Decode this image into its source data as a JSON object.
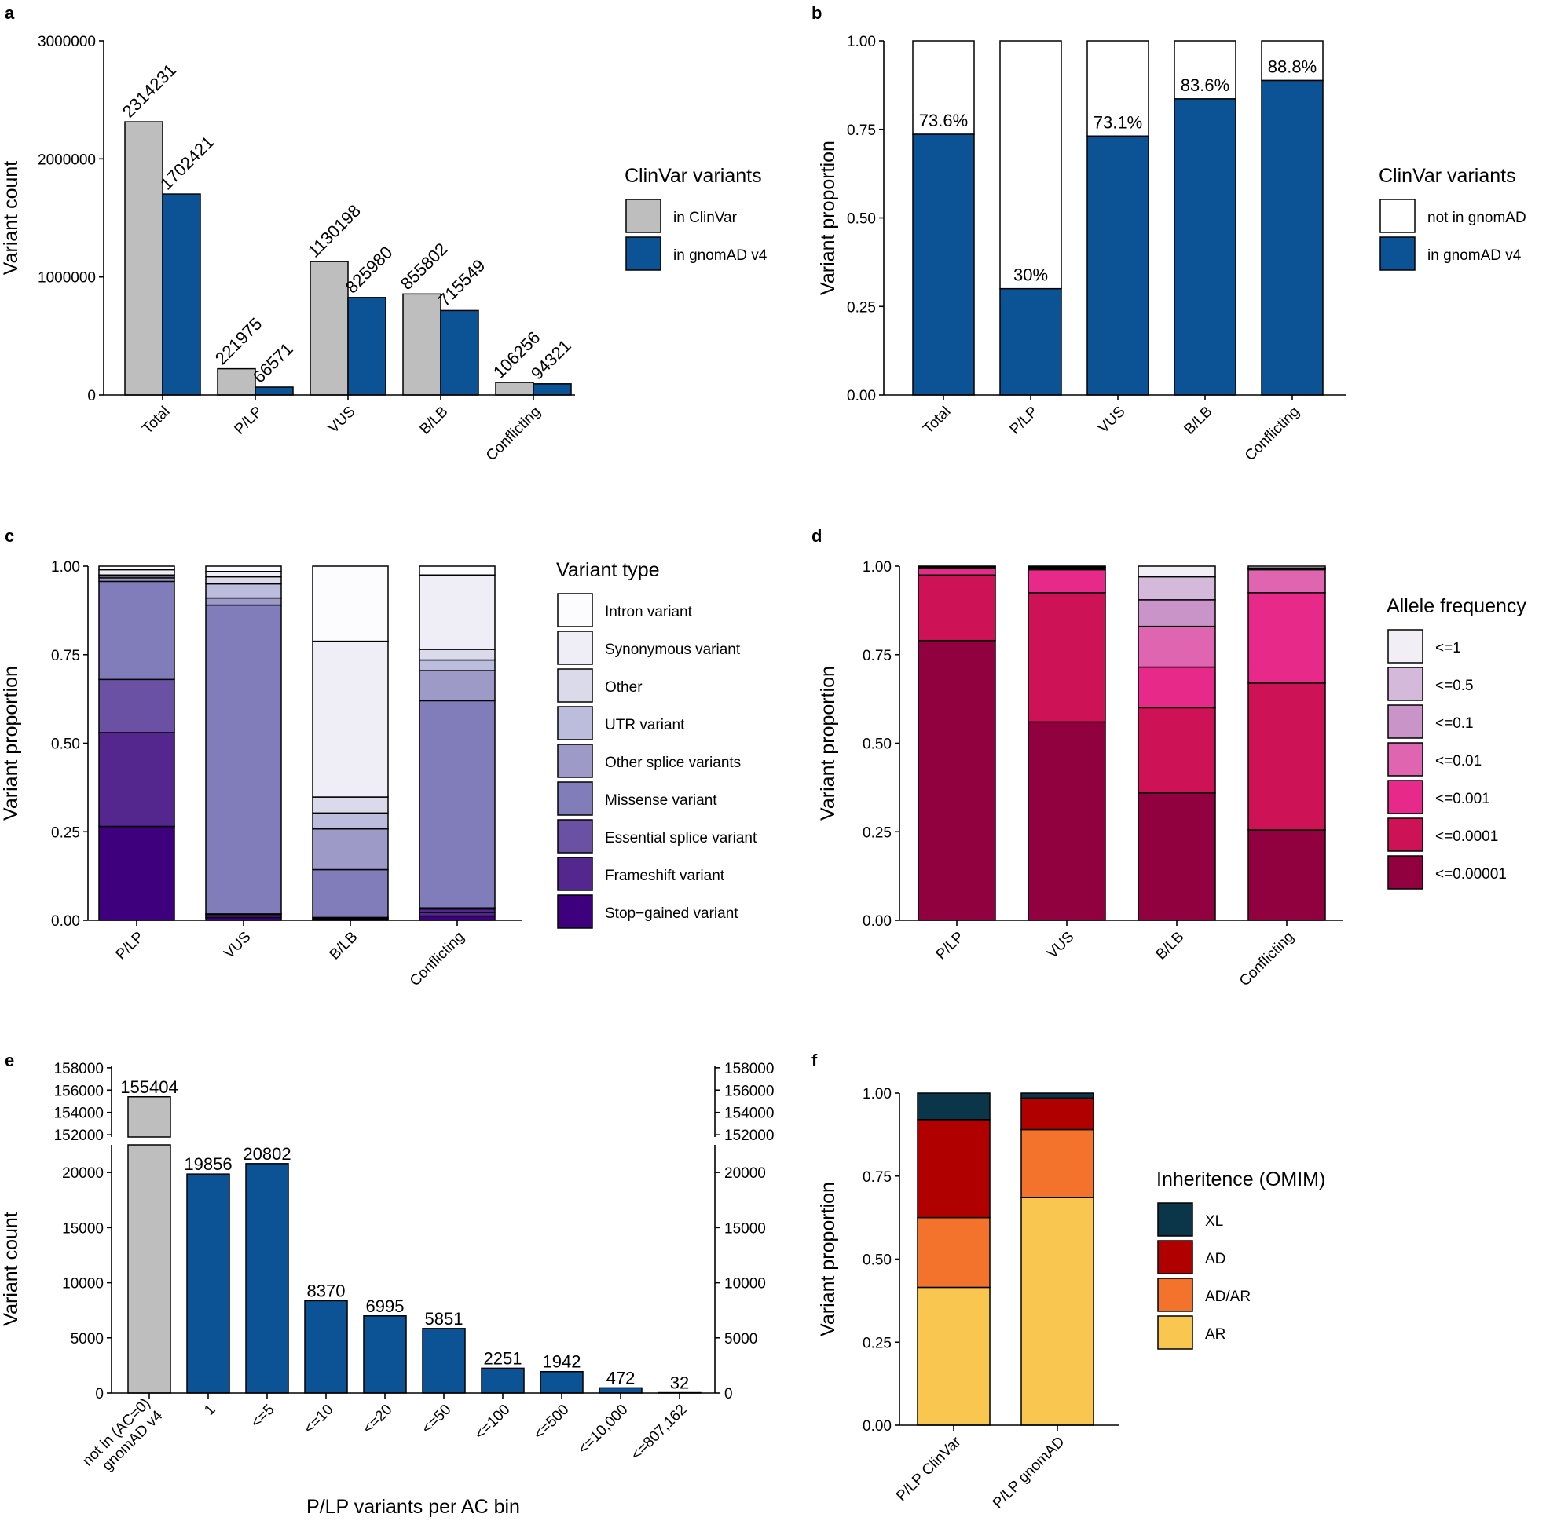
{
  "colors": {
    "grey": "#BEBEBE",
    "blue": "#0B5394",
    "vt": [
      "#3F007D",
      "#54278F",
      "#6A51A3",
      "#807DBA",
      "#9E9AC8",
      "#BCBDDC",
      "#DADAEB",
      "#EFEDF5",
      "#FCFBFD"
    ],
    "af": [
      "#91003F",
      "#CE1256",
      "#E7298A",
      "#DF65B0",
      "#C994C7",
      "#D4B9DA",
      "#F1EEF6"
    ],
    "inh": [
      "#F9C74F",
      "#F3722C",
      "#B00000",
      "#0B3548"
    ]
  },
  "chart_data": [
    {
      "id": "a",
      "panel_label": "a",
      "type": "bar",
      "categories": [
        "Total",
        "P/LP",
        "VUS",
        "B/LB",
        "Conflicting"
      ],
      "series": [
        {
          "name": "in ClinVar",
          "values": [
            2314231,
            221975,
            1130198,
            855802,
            106256
          ]
        },
        {
          "name": "in gnomAD v4",
          "values": [
            1702421,
            66571,
            825980,
            715549,
            94321
          ]
        }
      ],
      "ylabel": "Variant count",
      "ylim": [
        0,
        3000000
      ],
      "yticks": [
        "0",
        "1000000",
        "2000000",
        "3000000"
      ],
      "legend_title": "ClinVar variants",
      "legend_position": "right"
    },
    {
      "id": "b",
      "panel_label": "b",
      "type": "bar",
      "stacked": true,
      "categories": [
        "Total",
        "P/LP",
        "VUS",
        "B/LB",
        "Conflicting"
      ],
      "series": [
        {
          "name": "in gnomAD v4",
          "values": [
            0.736,
            0.3,
            0.731,
            0.836,
            0.888
          ]
        },
        {
          "name": "not in gnomAD",
          "values": [
            0.264,
            0.7,
            0.269,
            0.164,
            0.112
          ]
        }
      ],
      "labels": [
        "73.6%",
        "30%",
        "73.1%",
        "83.6%",
        "88.8%"
      ],
      "ylabel": "Variant proportion",
      "ylim": [
        0,
        1
      ],
      "yticks": [
        "0.00",
        "0.25",
        "0.50",
        "0.75",
        "1.00"
      ],
      "legend_title": "ClinVar variants",
      "legend_items": [
        "not in gnomAD",
        "in gnomAD v4"
      ],
      "legend_position": "right"
    },
    {
      "id": "c",
      "panel_label": "c",
      "type": "bar",
      "stacked": true,
      "categories": [
        "P/LP",
        "VUS",
        "B/LB",
        "Conflicting"
      ],
      "series": [
        {
          "name": "Stop−gained variant",
          "values": [
            0.265,
            0.008,
            0.003,
            0.012
          ]
        },
        {
          "name": "Frameshift variant",
          "values": [
            0.265,
            0.008,
            0.003,
            0.01
          ]
        },
        {
          "name": "",
          "values": [
            0.0,
            0.0,
            0.0,
            0.01
          ]
        },
        {
          "name": "Essential splice variant",
          "values": [
            0.15,
            0.002,
            0.002,
            0.003
          ]
        },
        {
          "name": "Missense variant",
          "values": [
            0.277,
            0.872,
            0.135,
            0.585
          ]
        },
        {
          "name": "Other splice variants",
          "values": [
            0.01,
            0.02,
            0.115,
            0.085
          ]
        },
        {
          "name": "UTR variant",
          "values": [
            0.005,
            0.04,
            0.045,
            0.03
          ]
        },
        {
          "name": "Other",
          "values": [
            0.003,
            0.02,
            0.045,
            0.03
          ]
        },
        {
          "name": "Synonymous variant",
          "values": [
            0.015,
            0.015,
            0.44,
            0.21
          ]
        },
        {
          "name": "Intron variant",
          "values": [
            0.01,
            0.015,
            0.212,
            0.025
          ]
        }
      ],
      "ylabel": "Variant proportion",
      "ylim": [
        0,
        1
      ],
      "yticks": [
        "0.00",
        "0.25",
        "0.50",
        "0.75",
        "1.00"
      ],
      "legend_title": "Variant type",
      "legend_items": [
        "Intron variant",
        "Synonymous variant",
        "Other",
        "UTR variant",
        "Other splice variants",
        "Missense variant",
        "Essential splice variant",
        "Frameshift variant",
        "Stop−gained variant"
      ],
      "legend_position": "right"
    },
    {
      "id": "d",
      "panel_label": "d",
      "type": "bar",
      "stacked": true,
      "categories": [
        "P/LP",
        "VUS",
        "B/LB",
        "Conflicting"
      ],
      "series": [
        {
          "name": "<=0.00001",
          "values": [
            0.79,
            0.56,
            0.36,
            0.255
          ]
        },
        {
          "name": "<=0.0001",
          "values": [
            0.185,
            0.365,
            0.24,
            0.415
          ]
        },
        {
          "name": "<=0.001",
          "values": [
            0.02,
            0.065,
            0.115,
            0.255
          ]
        },
        {
          "name": "<=0.01",
          "values": [
            0.003,
            0.005,
            0.115,
            0.065
          ]
        },
        {
          "name": "<=0.1",
          "values": [
            0.001,
            0.002,
            0.075,
            0.003
          ]
        },
        {
          "name": "<=0.5",
          "values": [
            0.0005,
            0.001,
            0.065,
            0.002
          ]
        },
        {
          "name": "<=1",
          "values": [
            0.0005,
            0.002,
            0.03,
            0.005
          ]
        }
      ],
      "ylabel": "Variant proportion",
      "ylim": [
        0,
        1
      ],
      "yticks": [
        "0.00",
        "0.25",
        "0.50",
        "0.75",
        "1.00"
      ],
      "legend_title": "Allele frequency",
      "legend_items": [
        "<=1",
        "<=0.5",
        "<=0.1",
        "<=0.01",
        "<=0.001",
        "<=0.0001",
        "<=0.00001"
      ],
      "legend_position": "right"
    },
    {
      "id": "e",
      "panel_label": "e",
      "type": "bar",
      "broken_axis": true,
      "categories": [
        "not in (AC=0)\ngnomAD v4",
        "1",
        "<=5",
        "<=10",
        "<=20",
        "<=50",
        "<=100",
        "<=500",
        "<=10,000",
        "<=807,162"
      ],
      "values": [
        155404,
        19856,
        20802,
        8370,
        6995,
        5851,
        2251,
        1942,
        472,
        32
      ],
      "xlabel": "P/LP variants per AC bin",
      "ylabel": "Variant count",
      "ylim_lower": [
        0,
        22500
      ],
      "ylim_upper": [
        151800,
        158200
      ],
      "yticks_lower": [
        "0",
        "5000",
        "10000",
        "15000",
        "20000"
      ],
      "yticks_upper": [
        "152000",
        "154000",
        "156000",
        "158000"
      ]
    },
    {
      "id": "f",
      "panel_label": "f",
      "type": "bar",
      "stacked": true,
      "categories": [
        "P/LP ClinVar",
        "P/LP gnomAD"
      ],
      "series": [
        {
          "name": "AR",
          "values": [
            0.415,
            0.685
          ]
        },
        {
          "name": "AD/AR",
          "values": [
            0.21,
            0.205
          ]
        },
        {
          "name": "AD",
          "values": [
            0.295,
            0.095
          ]
        },
        {
          "name": "XL",
          "values": [
            0.08,
            0.015
          ]
        }
      ],
      "ylabel": "Variant proportion",
      "ylim": [
        0,
        1
      ],
      "yticks": [
        "0.00",
        "0.25",
        "0.50",
        "0.75",
        "1.00"
      ],
      "legend_title": "Inheritence (OMIM)",
      "legend_items": [
        "XL",
        "AD",
        "AD/AR",
        "AR"
      ],
      "legend_position": "right"
    }
  ]
}
